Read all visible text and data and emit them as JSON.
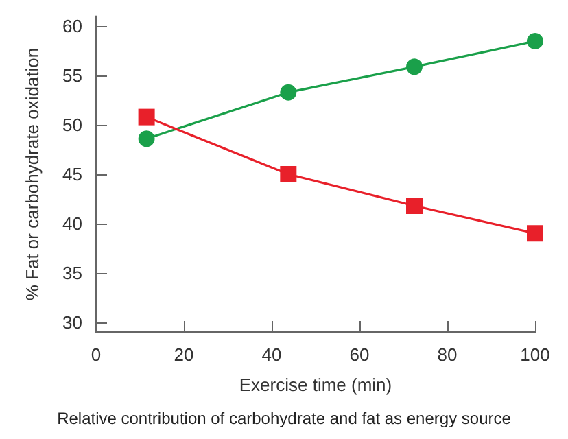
{
  "chart_data": {
    "type": "line",
    "xlabel": "Exercise time (min)",
    "ylabel": "% Fat or carbohydrate oxidation",
    "annotations": [
      "Relative contribution of carbohydrate and fat as energy source"
    ],
    "x": [
      11.5,
      43.8,
      72.5,
      100
    ],
    "series": [
      {
        "color": "#1aa04a",
        "marker": "circle",
        "values": [
          48.6,
          53.3,
          55.9,
          58.5
        ]
      },
      {
        "color": "#e8202a",
        "marker": "square",
        "values": [
          50.8,
          45.0,
          41.8,
          39.0
        ]
      }
    ],
    "xlim": [
      0,
      100
    ],
    "xticks": [
      0,
      20,
      40,
      60,
      80,
      100
    ],
    "ylim": [
      29,
      61
    ],
    "yticks": [
      30,
      35,
      40,
      45,
      50,
      55,
      60
    ]
  }
}
